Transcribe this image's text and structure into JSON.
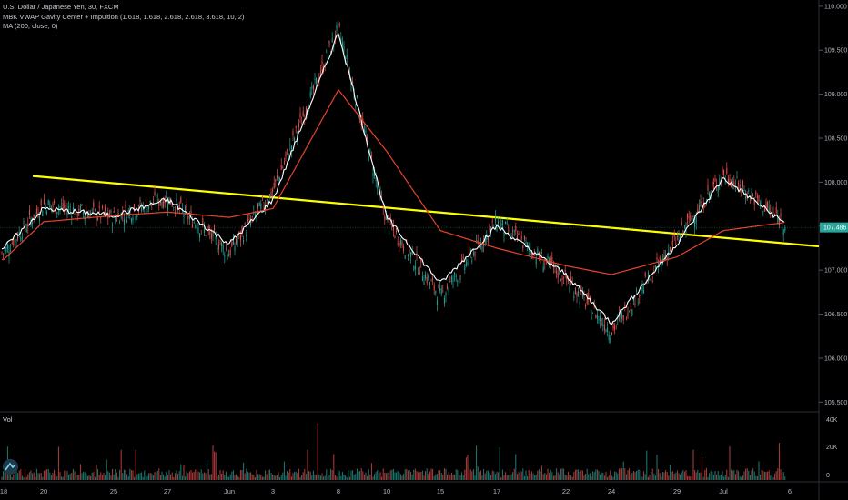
{
  "legend": {
    "symbol": "U.S. Dollar / Japanese Yen, 30, FXCM",
    "indicator1": "MBK VWAP Gavity Center + Impultion (1.618, 1.618, 2.618, 2.618, 3.618, 10, 2)",
    "indicator2": "MA (200, close, 0)"
  },
  "volume": {
    "label": "Vol",
    "ticks": [
      "40K",
      "20K",
      "0"
    ]
  },
  "colors": {
    "background": "#000000",
    "price_up": "#26a69a",
    "price_down": "#ef5350",
    "ma": "#e8432a",
    "vwap": "#ffffff",
    "trendline": "#ffff00",
    "last_price_bg": "#26a69a"
  },
  "chart_data": {
    "type": "line",
    "yaxis": {
      "ticks": [
        "110.000",
        "109.500",
        "109.000",
        "108.500",
        "108.000",
        "107.500",
        "107.000",
        "106.500",
        "106.000",
        "105.500"
      ],
      "ylim": [
        105.4,
        110.05
      ]
    },
    "xaxis": {
      "ticks": [
        "18",
        "20",
        "25",
        "27",
        "Jun",
        "3",
        "8",
        "10",
        "15",
        "17",
        "22",
        "24",
        "29",
        "Jul",
        "6"
      ]
    },
    "last_price": "107.486",
    "trendline": {
      "from": [
        "18",
        108.07
      ],
      "to": [
        "6",
        107.27
      ]
    },
    "series": [
      {
        "role": "price",
        "points": [
          [
            "18",
            107.2
          ],
          [
            "20",
            107.75
          ],
          [
            "25",
            107.6
          ],
          [
            "27",
            107.82
          ],
          [
            "Jun",
            107.2
          ],
          [
            "3",
            107.9
          ],
          [
            "8",
            109.75
          ],
          [
            "10",
            107.55
          ],
          [
            "15",
            106.7
          ],
          [
            "17",
            107.55
          ],
          [
            "22",
            106.9
          ],
          [
            "24",
            106.3
          ],
          [
            "29",
            107.35
          ],
          [
            "Jul",
            108.1
          ],
          [
            "6",
            107.49
          ]
        ]
      },
      {
        "role": "vwap",
        "points": [
          [
            "18",
            107.25
          ],
          [
            "20",
            107.7
          ],
          [
            "25",
            107.62
          ],
          [
            "27",
            107.8
          ],
          [
            "Jun",
            107.3
          ],
          [
            "3",
            107.8
          ],
          [
            "8",
            109.7
          ],
          [
            "10",
            107.6
          ],
          [
            "15",
            106.85
          ],
          [
            "17",
            107.5
          ],
          [
            "22",
            106.95
          ],
          [
            "24",
            106.4
          ],
          [
            "29",
            107.3
          ],
          [
            "Jul",
            108.05
          ],
          [
            "6",
            107.49
          ]
        ]
      },
      {
        "role": "ma",
        "points": [
          [
            "18",
            107.12
          ],
          [
            "20",
            107.55
          ],
          [
            "25",
            107.62
          ],
          [
            "27",
            107.66
          ],
          [
            "Jun",
            107.6
          ],
          [
            "3",
            107.7
          ],
          [
            "8",
            109.05
          ],
          [
            "10",
            108.35
          ],
          [
            "15",
            107.45
          ],
          [
            "17",
            107.25
          ],
          [
            "22",
            107.05
          ],
          [
            "24",
            106.95
          ],
          [
            "29",
            107.15
          ],
          [
            "Jul",
            107.45
          ],
          [
            "6",
            107.55
          ]
        ]
      }
    ]
  }
}
